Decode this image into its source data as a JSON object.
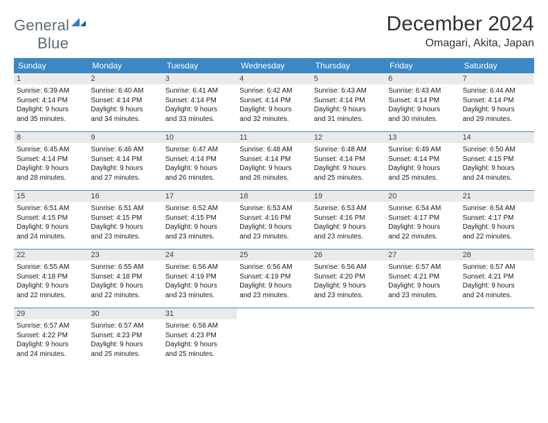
{
  "logo": {
    "text_gray": "General",
    "text_blue": "Blue"
  },
  "title": "December 2024",
  "location": "Omagari, Akita, Japan",
  "colors": {
    "header_bar": "#3b88c6",
    "daynum_bg": "#eaeaea",
    "row_border": "#3b88c6",
    "logo_gray": "#5a6a78",
    "logo_blue": "#2f7fc4"
  },
  "days_of_week": [
    "Sunday",
    "Monday",
    "Tuesday",
    "Wednesday",
    "Thursday",
    "Friday",
    "Saturday"
  ],
  "weeks": [
    [
      {
        "n": "1",
        "sunrise": "Sunrise: 6:39 AM",
        "sunset": "Sunset: 4:14 PM",
        "day1": "Daylight: 9 hours",
        "day2": "and 35 minutes."
      },
      {
        "n": "2",
        "sunrise": "Sunrise: 6:40 AM",
        "sunset": "Sunset: 4:14 PM",
        "day1": "Daylight: 9 hours",
        "day2": "and 34 minutes."
      },
      {
        "n": "3",
        "sunrise": "Sunrise: 6:41 AM",
        "sunset": "Sunset: 4:14 PM",
        "day1": "Daylight: 9 hours",
        "day2": "and 33 minutes."
      },
      {
        "n": "4",
        "sunrise": "Sunrise: 6:42 AM",
        "sunset": "Sunset: 4:14 PM",
        "day1": "Daylight: 9 hours",
        "day2": "and 32 minutes."
      },
      {
        "n": "5",
        "sunrise": "Sunrise: 6:43 AM",
        "sunset": "Sunset: 4:14 PM",
        "day1": "Daylight: 9 hours",
        "day2": "and 31 minutes."
      },
      {
        "n": "6",
        "sunrise": "Sunrise: 6:43 AM",
        "sunset": "Sunset: 4:14 PM",
        "day1": "Daylight: 9 hours",
        "day2": "and 30 minutes."
      },
      {
        "n": "7",
        "sunrise": "Sunrise: 6:44 AM",
        "sunset": "Sunset: 4:14 PM",
        "day1": "Daylight: 9 hours",
        "day2": "and 29 minutes."
      }
    ],
    [
      {
        "n": "8",
        "sunrise": "Sunrise: 6:45 AM",
        "sunset": "Sunset: 4:14 PM",
        "day1": "Daylight: 9 hours",
        "day2": "and 28 minutes."
      },
      {
        "n": "9",
        "sunrise": "Sunrise: 6:46 AM",
        "sunset": "Sunset: 4:14 PM",
        "day1": "Daylight: 9 hours",
        "day2": "and 27 minutes."
      },
      {
        "n": "10",
        "sunrise": "Sunrise: 6:47 AM",
        "sunset": "Sunset: 4:14 PM",
        "day1": "Daylight: 9 hours",
        "day2": "and 26 minutes."
      },
      {
        "n": "11",
        "sunrise": "Sunrise: 6:48 AM",
        "sunset": "Sunset: 4:14 PM",
        "day1": "Daylight: 9 hours",
        "day2": "and 26 minutes."
      },
      {
        "n": "12",
        "sunrise": "Sunrise: 6:48 AM",
        "sunset": "Sunset: 4:14 PM",
        "day1": "Daylight: 9 hours",
        "day2": "and 25 minutes."
      },
      {
        "n": "13",
        "sunrise": "Sunrise: 6:49 AM",
        "sunset": "Sunset: 4:14 PM",
        "day1": "Daylight: 9 hours",
        "day2": "and 25 minutes."
      },
      {
        "n": "14",
        "sunrise": "Sunrise: 6:50 AM",
        "sunset": "Sunset: 4:15 PM",
        "day1": "Daylight: 9 hours",
        "day2": "and 24 minutes."
      }
    ],
    [
      {
        "n": "15",
        "sunrise": "Sunrise: 6:51 AM",
        "sunset": "Sunset: 4:15 PM",
        "day1": "Daylight: 9 hours",
        "day2": "and 24 minutes."
      },
      {
        "n": "16",
        "sunrise": "Sunrise: 6:51 AM",
        "sunset": "Sunset: 4:15 PM",
        "day1": "Daylight: 9 hours",
        "day2": "and 23 minutes."
      },
      {
        "n": "17",
        "sunrise": "Sunrise: 6:52 AM",
        "sunset": "Sunset: 4:15 PM",
        "day1": "Daylight: 9 hours",
        "day2": "and 23 minutes."
      },
      {
        "n": "18",
        "sunrise": "Sunrise: 6:53 AM",
        "sunset": "Sunset: 4:16 PM",
        "day1": "Daylight: 9 hours",
        "day2": "and 23 minutes."
      },
      {
        "n": "19",
        "sunrise": "Sunrise: 6:53 AM",
        "sunset": "Sunset: 4:16 PM",
        "day1": "Daylight: 9 hours",
        "day2": "and 23 minutes."
      },
      {
        "n": "20",
        "sunrise": "Sunrise: 6:54 AM",
        "sunset": "Sunset: 4:17 PM",
        "day1": "Daylight: 9 hours",
        "day2": "and 22 minutes."
      },
      {
        "n": "21",
        "sunrise": "Sunrise: 6:54 AM",
        "sunset": "Sunset: 4:17 PM",
        "day1": "Daylight: 9 hours",
        "day2": "and 22 minutes."
      }
    ],
    [
      {
        "n": "22",
        "sunrise": "Sunrise: 6:55 AM",
        "sunset": "Sunset: 4:18 PM",
        "day1": "Daylight: 9 hours",
        "day2": "and 22 minutes."
      },
      {
        "n": "23",
        "sunrise": "Sunrise: 6:55 AM",
        "sunset": "Sunset: 4:18 PM",
        "day1": "Daylight: 9 hours",
        "day2": "and 22 minutes."
      },
      {
        "n": "24",
        "sunrise": "Sunrise: 6:56 AM",
        "sunset": "Sunset: 4:19 PM",
        "day1": "Daylight: 9 hours",
        "day2": "and 23 minutes."
      },
      {
        "n": "25",
        "sunrise": "Sunrise: 6:56 AM",
        "sunset": "Sunset: 4:19 PM",
        "day1": "Daylight: 9 hours",
        "day2": "and 23 minutes."
      },
      {
        "n": "26",
        "sunrise": "Sunrise: 6:56 AM",
        "sunset": "Sunset: 4:20 PM",
        "day1": "Daylight: 9 hours",
        "day2": "and 23 minutes."
      },
      {
        "n": "27",
        "sunrise": "Sunrise: 6:57 AM",
        "sunset": "Sunset: 4:21 PM",
        "day1": "Daylight: 9 hours",
        "day2": "and 23 minutes."
      },
      {
        "n": "28",
        "sunrise": "Sunrise: 6:57 AM",
        "sunset": "Sunset: 4:21 PM",
        "day1": "Daylight: 9 hours",
        "day2": "and 24 minutes."
      }
    ],
    [
      {
        "n": "29",
        "sunrise": "Sunrise: 6:57 AM",
        "sunset": "Sunset: 4:22 PM",
        "day1": "Daylight: 9 hours",
        "day2": "and 24 minutes."
      },
      {
        "n": "30",
        "sunrise": "Sunrise: 6:57 AM",
        "sunset": "Sunset: 4:23 PM",
        "day1": "Daylight: 9 hours",
        "day2": "and 25 minutes."
      },
      {
        "n": "31",
        "sunrise": "Sunrise: 6:58 AM",
        "sunset": "Sunset: 4:23 PM",
        "day1": "Daylight: 9 hours",
        "day2": "and 25 minutes."
      },
      null,
      null,
      null,
      null
    ]
  ]
}
